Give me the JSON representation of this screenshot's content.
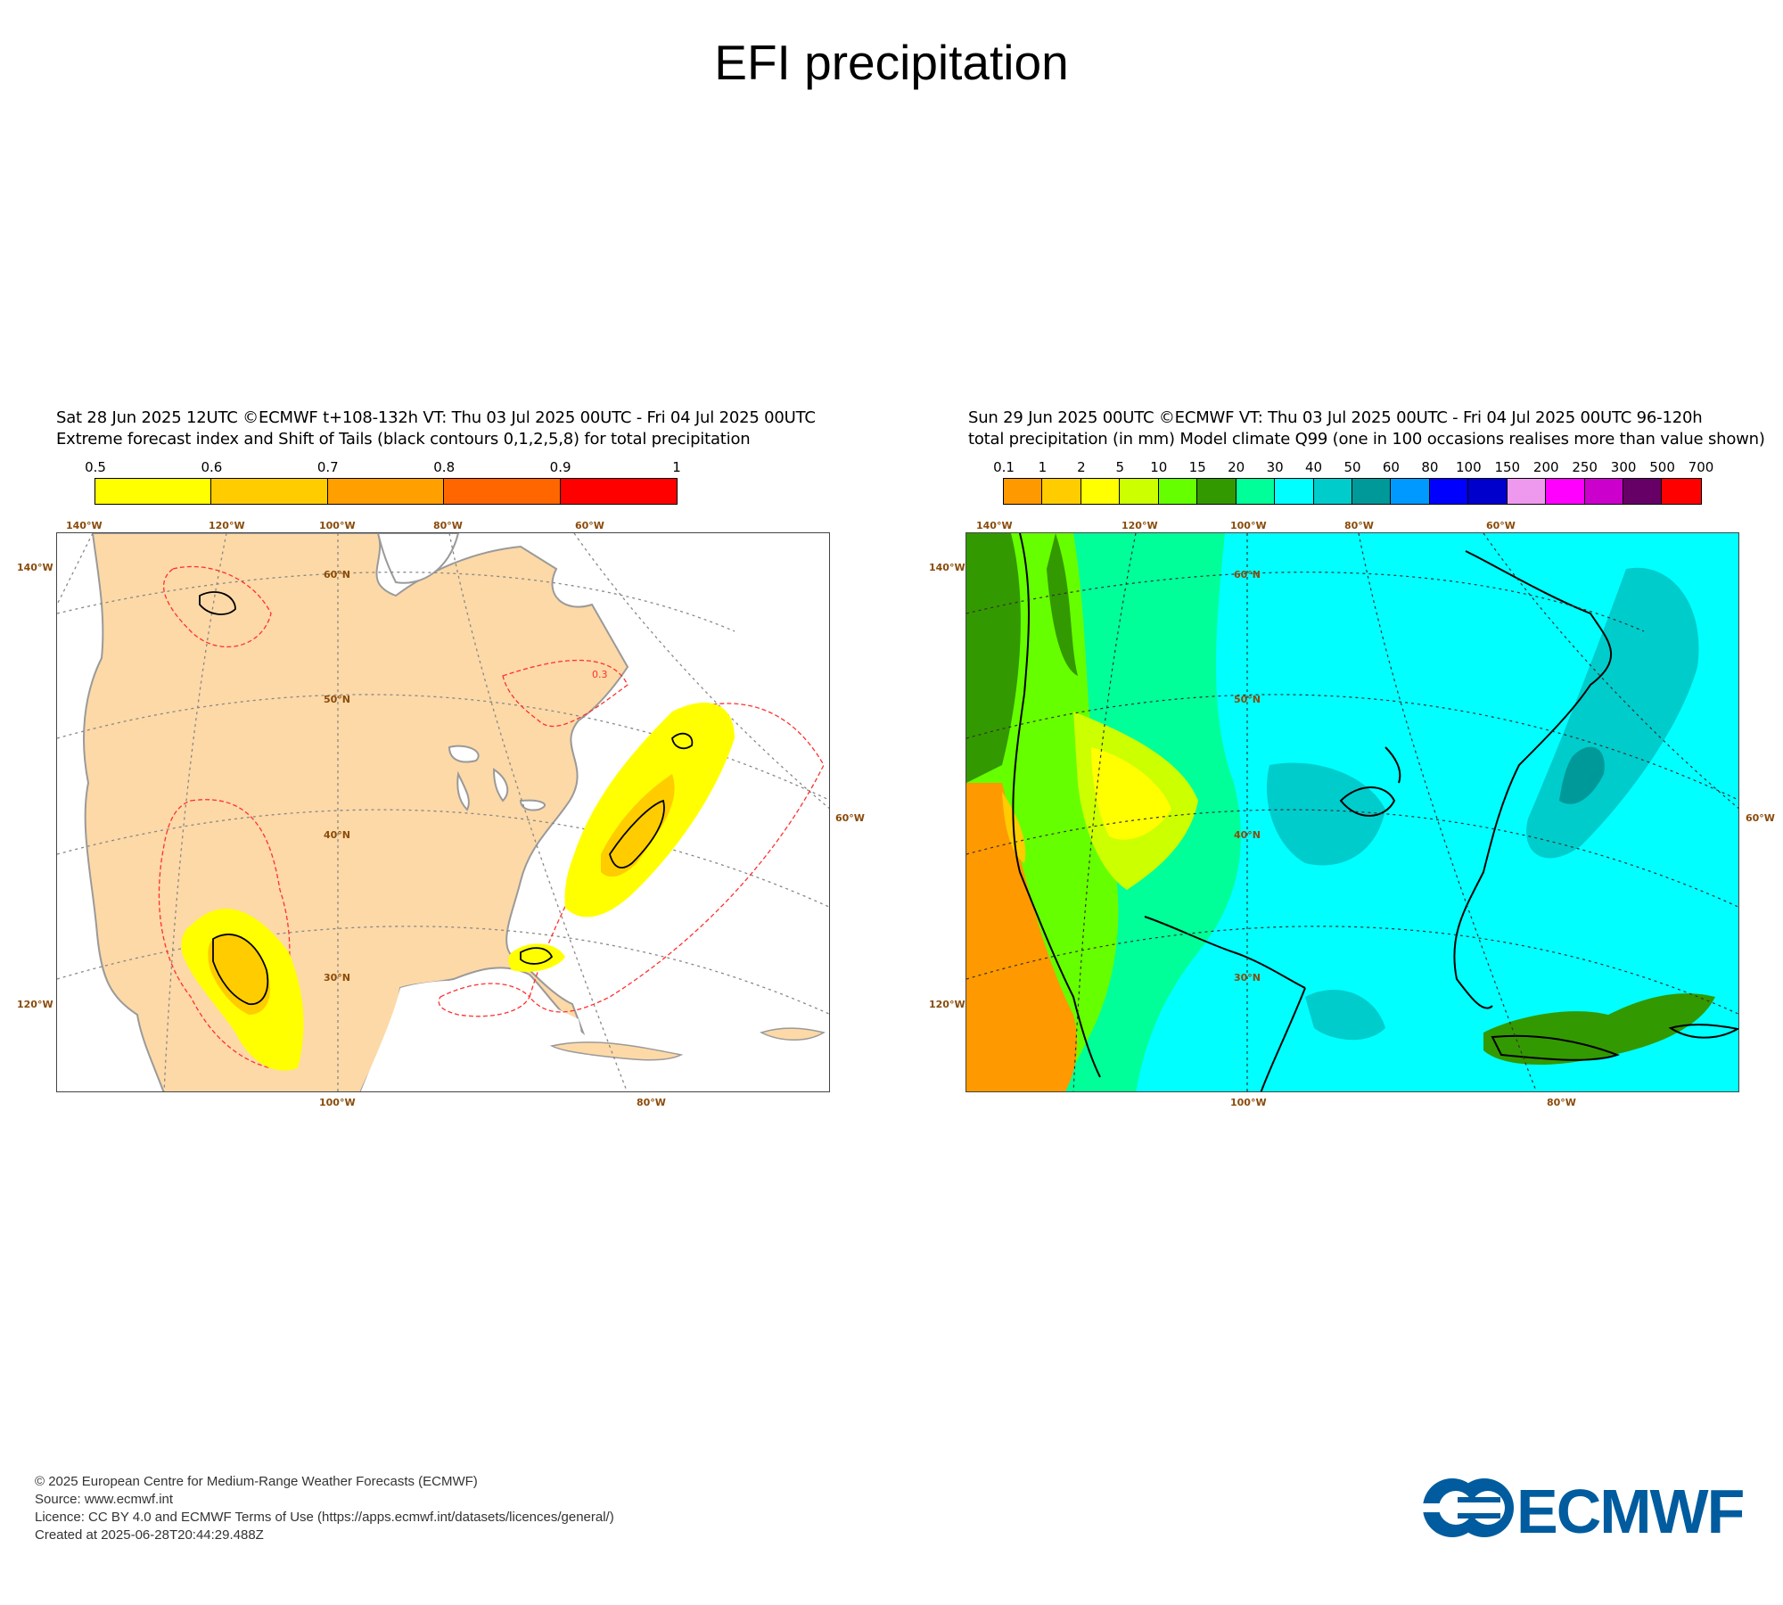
{
  "title": "EFI precipitation",
  "left_panel": {
    "header_line1": "Sat 28 Jun 2025 12UTC ©ECMWF t+108-132h  VT: Thu 03 Jul 2025 00UTC - Fri 04 Jul 2025 00UTC",
    "header_line2": "Extreme forecast index and Shift of Tails (black contours 0,1,2,5,8) for total precipitation",
    "colorbar": {
      "ticks": [
        "0.5",
        "0.6",
        "0.7",
        "0.8",
        "0.9",
        "1"
      ],
      "colors": [
        "#ffff00",
        "#ffcc00",
        "#ff9f00",
        "#ff6600",
        "#ff0000"
      ]
    },
    "lon_labels_top": [
      "140°W",
      "120°W",
      "100°W",
      "80°W",
      "60°W"
    ],
    "lon_labels_bottom": [
      "100°W",
      "80°W"
    ],
    "lat_labels": [
      "60°N",
      "50°N",
      "40°N",
      "30°N"
    ],
    "side_labels_left": [
      "140°W",
      "120°W"
    ],
    "side_labels_right": [
      "60°W"
    ],
    "contour_label": "0.3"
  },
  "right_panel": {
    "header_line1": "Sun 29 Jun 2025 00UTC ©ECMWF VT: Thu 03 Jul 2025 00UTC - Fri 04 Jul 2025 00UTC   96-120h",
    "header_line2": "total precipitation (in mm)  Model climate Q99 (one in 100 occasions realises more than value shown)",
    "colorbar": {
      "ticks": [
        "0.1",
        "1",
        "2",
        "5",
        "10",
        "15",
        "20",
        "30",
        "40",
        "50",
        "60",
        "80",
        "100",
        "150",
        "200",
        "250",
        "300",
        "500",
        "700"
      ],
      "colors": [
        "#ff9900",
        "#ffcc00",
        "#ffff00",
        "#ccff00",
        "#66ff00",
        "#339900",
        "#00ff99",
        "#00ffff",
        "#00cccc",
        "#009999",
        "#0099ff",
        "#0000ff",
        "#0000cc",
        "#ee99ee",
        "#ff00ff",
        "#cc00cc",
        "#660066",
        "#ff0000"
      ]
    },
    "lon_labels_top": [
      "140°W",
      "120°W",
      "100°W",
      "80°W",
      "60°W"
    ],
    "lon_labels_bottom": [
      "100°W",
      "80°W"
    ],
    "lat_labels": [
      "60°N",
      "50°N",
      "40°N",
      "30°N"
    ],
    "side_labels_left": [
      "140°W",
      "120°W"
    ],
    "side_labels_right": [
      "60°W"
    ]
  },
  "footer": {
    "line1": "© 2025 European Centre for Medium-Range Weather Forecasts (ECMWF)",
    "line2": "Source: www.ecmwf.int",
    "line3": "Licence: CC BY 4.0 and ECMWF Terms of Use (https://apps.ecmwf.int/datasets/licences/general/)",
    "line4": "Created at 2025-06-28T20:44:29.488Z"
  },
  "logo": {
    "text": "ECMWF",
    "color": "#005c9e"
  }
}
